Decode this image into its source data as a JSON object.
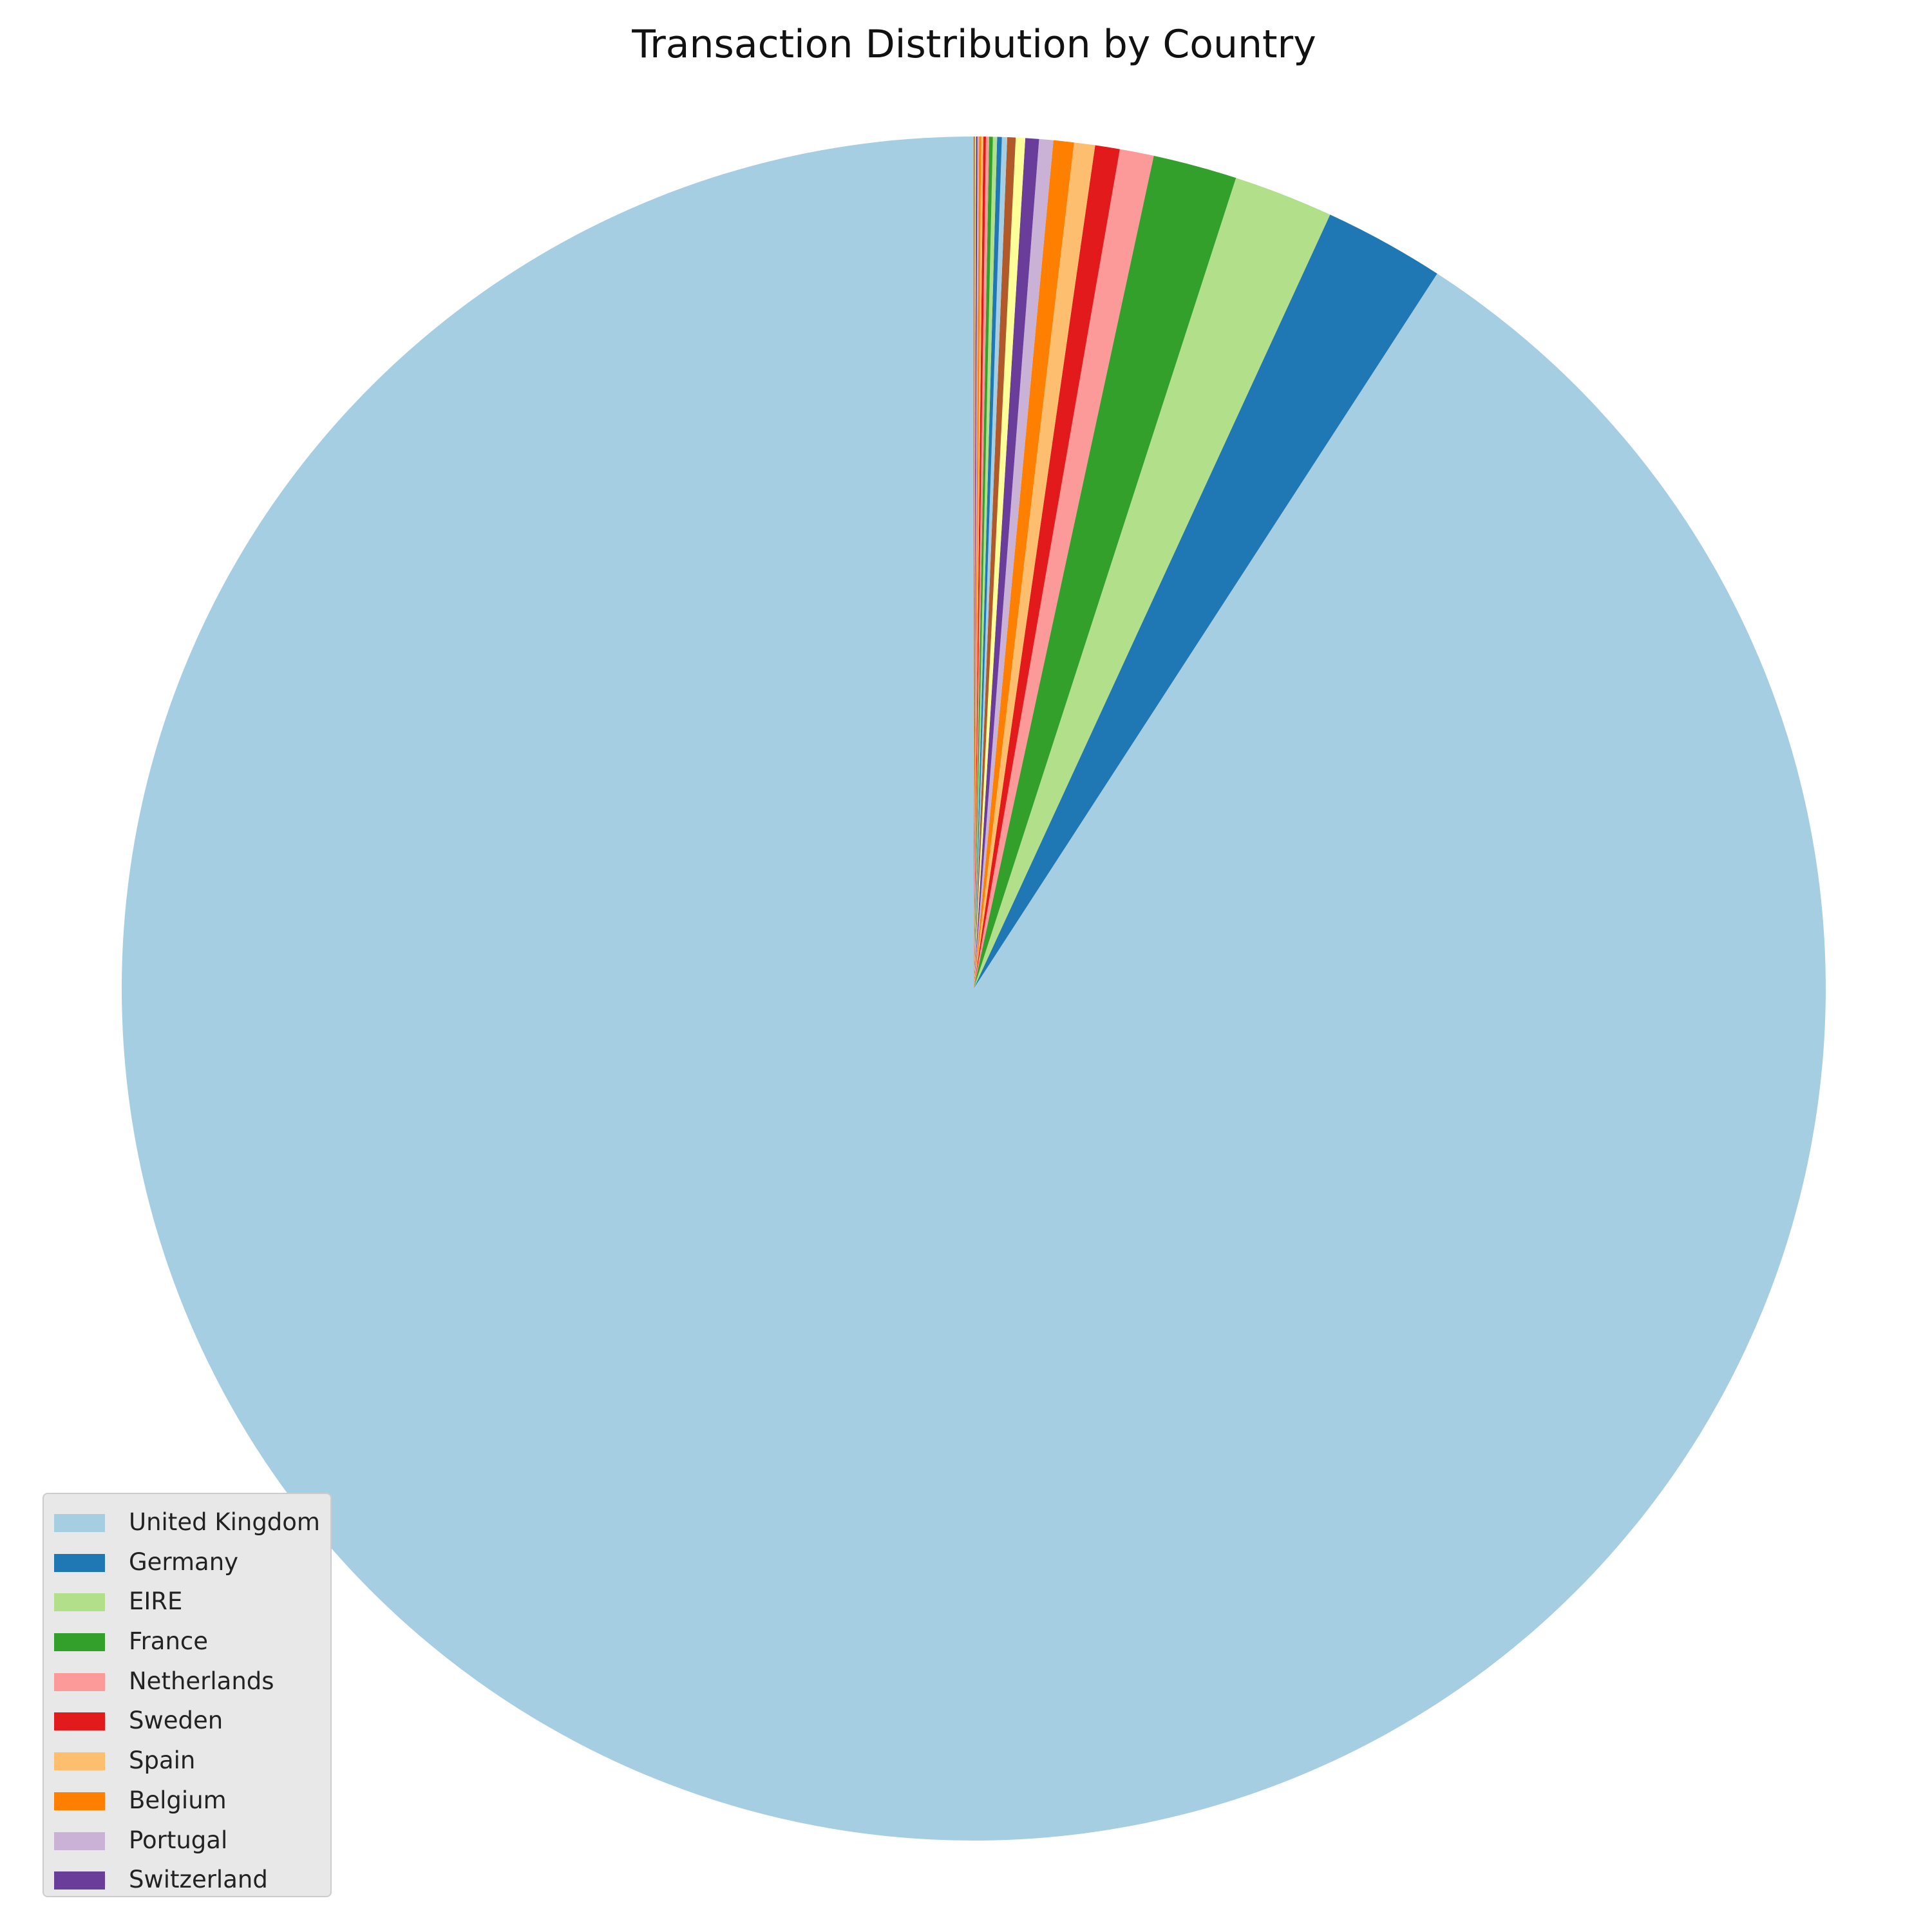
{
  "chart_data": {
    "type": "pie",
    "title": "Transaction Distribution by Country",
    "legend_position": "lower-left",
    "start_angle": "top",
    "direction": "counterclockwise",
    "slices": [
      {
        "label": "United Kingdom",
        "value": 91.4,
        "color": "#a6cee3"
      },
      {
        "label": "Germany",
        "value": 2.3,
        "color": "#1f78b4"
      },
      {
        "label": "EIRE",
        "value": 1.9,
        "color": "#b2df8a"
      },
      {
        "label": "France",
        "value": 1.6,
        "color": "#33a02c"
      },
      {
        "label": "Netherlands",
        "value": 0.65,
        "color": "#fb9a99"
      },
      {
        "label": "Sweden",
        "value": 0.47,
        "color": "#e31a1c"
      },
      {
        "label": "Spain",
        "value": 0.4,
        "color": "#fdbf6f"
      },
      {
        "label": "Belgium",
        "value": 0.39,
        "color": "#ff7f00"
      },
      {
        "label": "Portugal",
        "value": 0.27,
        "color": "#cab2d6"
      },
      {
        "label": "Switzerland",
        "value": 0.26,
        "color": "#6a3d9a"
      },
      {
        "label": "",
        "value": 0.18,
        "color": "#ffff99"
      },
      {
        "label": "",
        "value": 0.16,
        "color": "#b15928"
      },
      {
        "label": "",
        "value": 0.1,
        "color": "#a6cee3"
      },
      {
        "label": "",
        "value": 0.09,
        "color": "#1f78b4"
      },
      {
        "label": "",
        "value": 0.08,
        "color": "#b2df8a"
      },
      {
        "label": "",
        "value": 0.07,
        "color": "#33a02c"
      },
      {
        "label": "",
        "value": 0.06,
        "color": "#fb9a99"
      },
      {
        "label": "",
        "value": 0.05,
        "color": "#e31a1c"
      },
      {
        "label": "",
        "value": 0.04,
        "color": "#fdbf6f"
      },
      {
        "label": "",
        "value": 0.04,
        "color": "#ff7f00"
      },
      {
        "label": "",
        "value": 0.03,
        "color": "#cab2d6"
      },
      {
        "label": "",
        "value": 0.03,
        "color": "#6a3d9a"
      },
      {
        "label": "",
        "value": 0.02,
        "color": "#ffff99"
      },
      {
        "label": "",
        "value": 0.02,
        "color": "#b15928"
      }
    ]
  }
}
